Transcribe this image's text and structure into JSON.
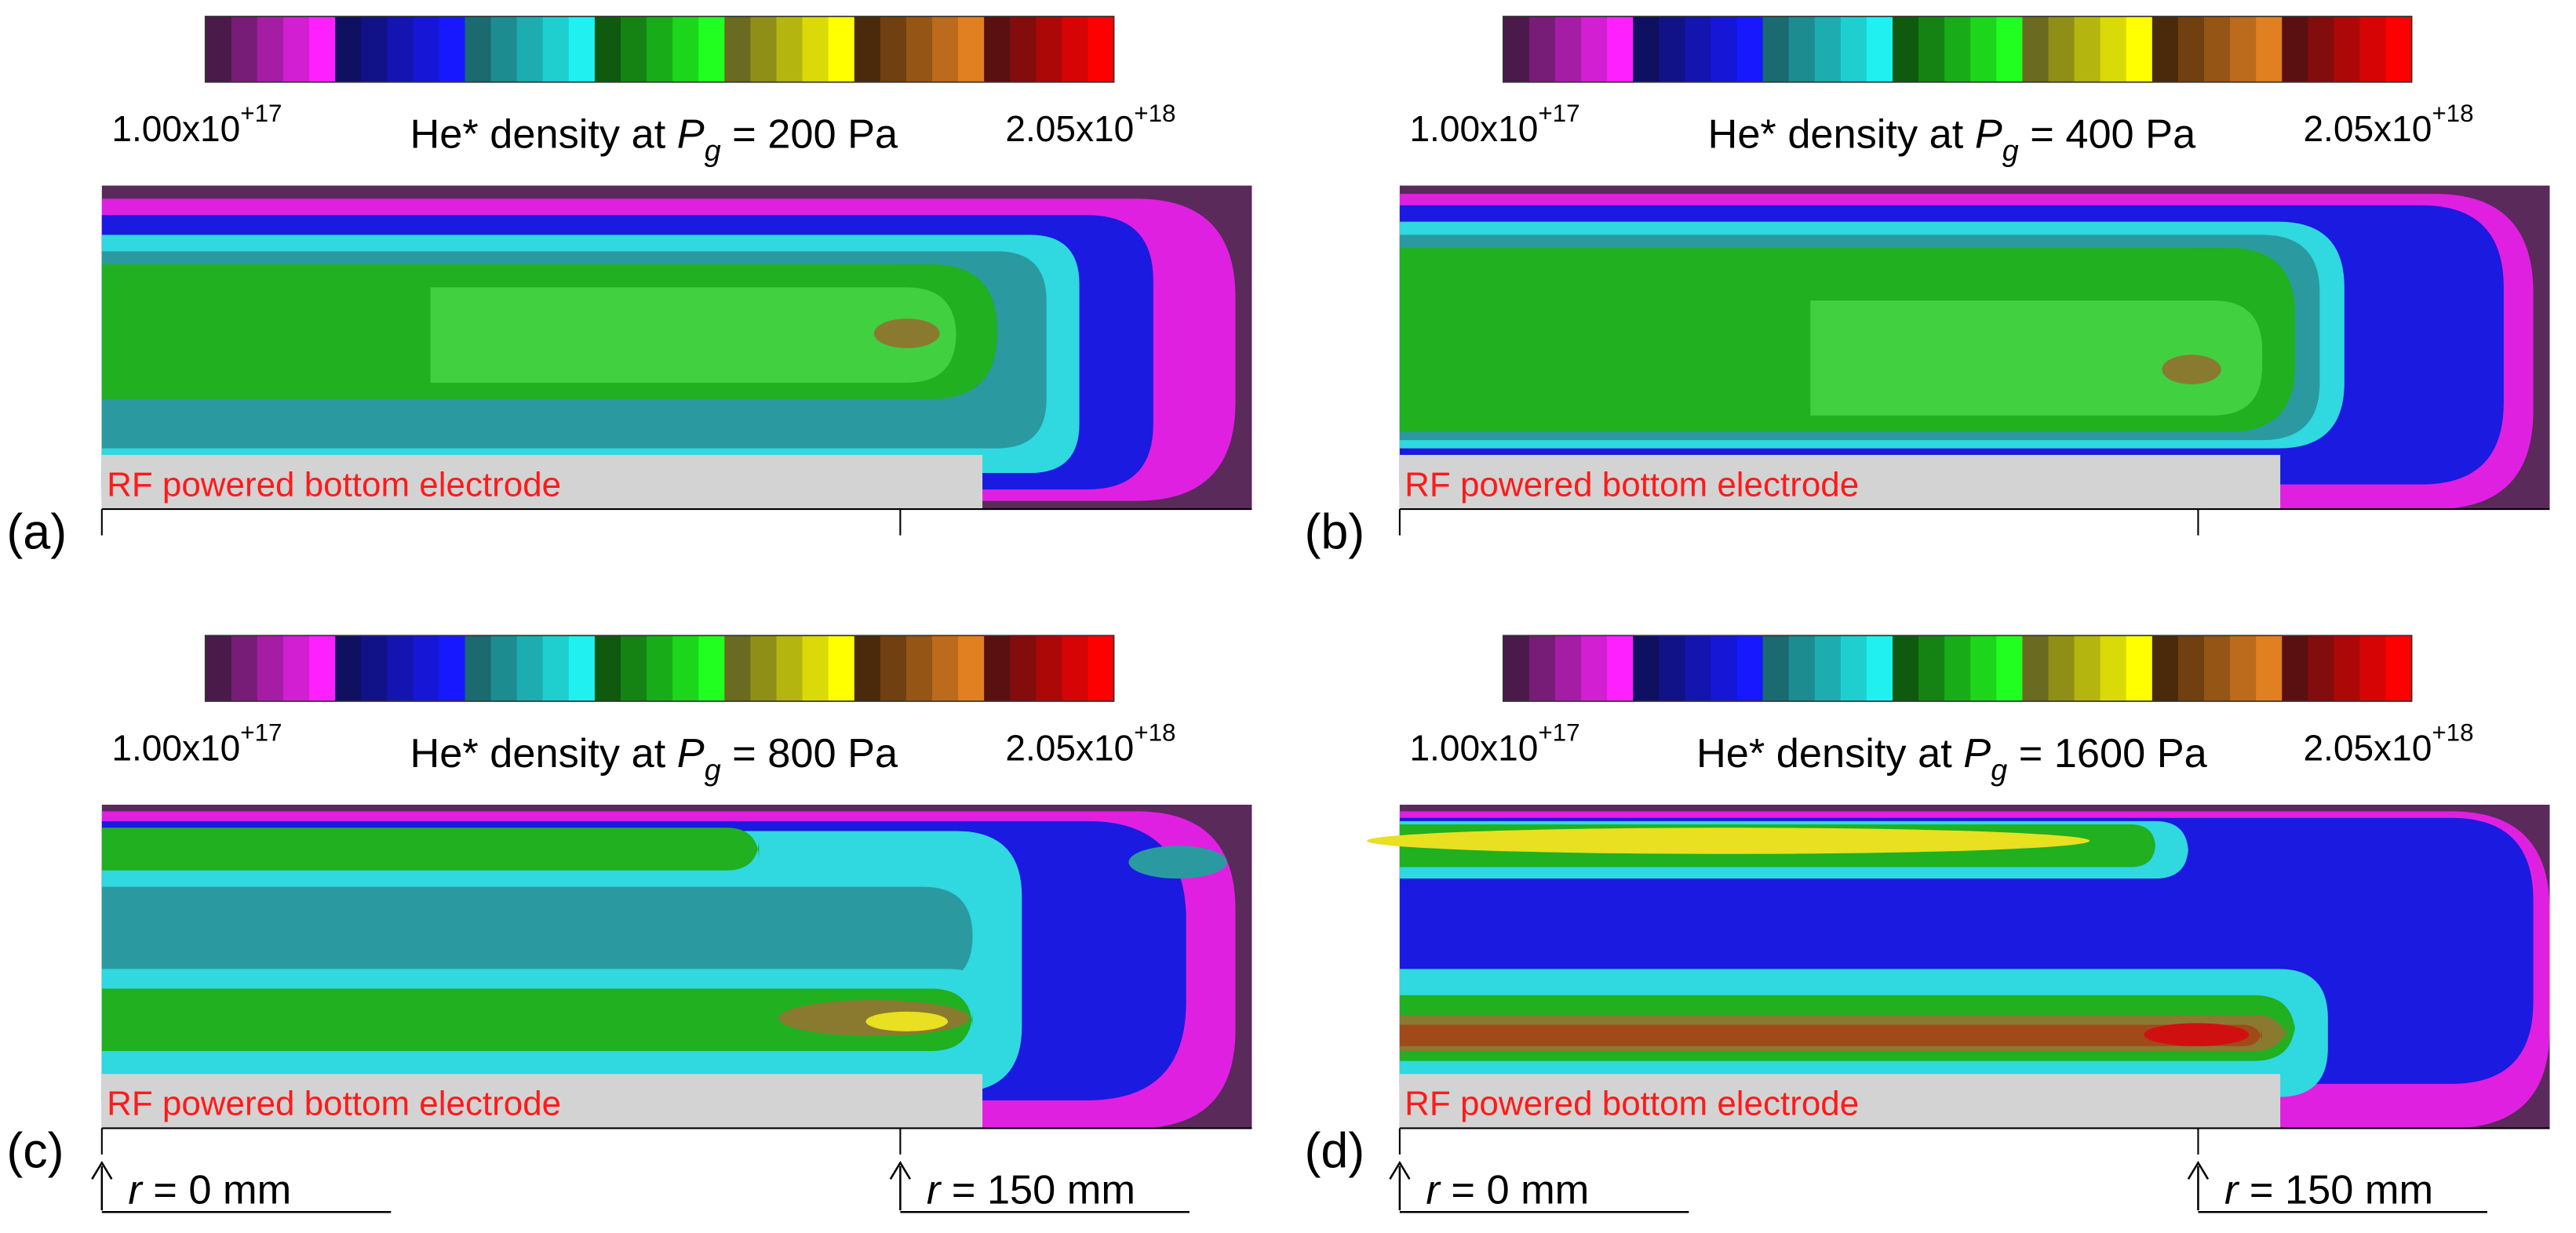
{
  "panels": [
    {
      "label": "(a)",
      "title": {
        "prefix": "He* density at ",
        "symbol": "P",
        "subscript": "g",
        "suffix": " = 200 Pa"
      },
      "colorbar": {
        "min": {
          "mantissa": "1.00x10",
          "exponent": "+17"
        },
        "max": {
          "mantissa": "2.05x10",
          "exponent": "+18"
        }
      },
      "electrode": "RF powered bottom electrode"
    },
    {
      "label": "(b)",
      "title": {
        "prefix": "He* density at ",
        "symbol": "P",
        "subscript": "g",
        "suffix": " = 400 Pa"
      },
      "colorbar": {
        "min": {
          "mantissa": "1.00x10",
          "exponent": "+17"
        },
        "max": {
          "mantissa": "2.05x10",
          "exponent": "+18"
        }
      },
      "electrode": "RF powered bottom electrode"
    },
    {
      "label": "(c)",
      "title": {
        "prefix": "He* density at ",
        "symbol": "P",
        "subscript": "g",
        "suffix": " = 800 Pa"
      },
      "colorbar": {
        "min": {
          "mantissa": "1.00x10",
          "exponent": "+17"
        },
        "max": {
          "mantissa": "2.05x10",
          "exponent": "+18"
        }
      },
      "electrode": "RF powered bottom electrode",
      "r_labels": [
        {
          "symbol": "r",
          "text": " = 0 mm"
        },
        {
          "symbol": "r",
          "text": " = 150 mm"
        }
      ]
    },
    {
      "label": "(d)",
      "title": {
        "prefix": "He* density at ",
        "symbol": "P",
        "subscript": "g",
        "suffix": " = 1600 Pa"
      },
      "colorbar": {
        "min": {
          "mantissa": "1.00x10",
          "exponent": "+17"
        },
        "max": {
          "mantissa": "2.05x10",
          "exponent": "+18"
        }
      },
      "electrode": "RF powered bottom electrode",
      "r_labels": [
        {
          "symbol": "r",
          "text": " = 0 mm"
        },
        {
          "symbol": "r",
          "text": " = 150 mm"
        }
      ]
    }
  ]
}
